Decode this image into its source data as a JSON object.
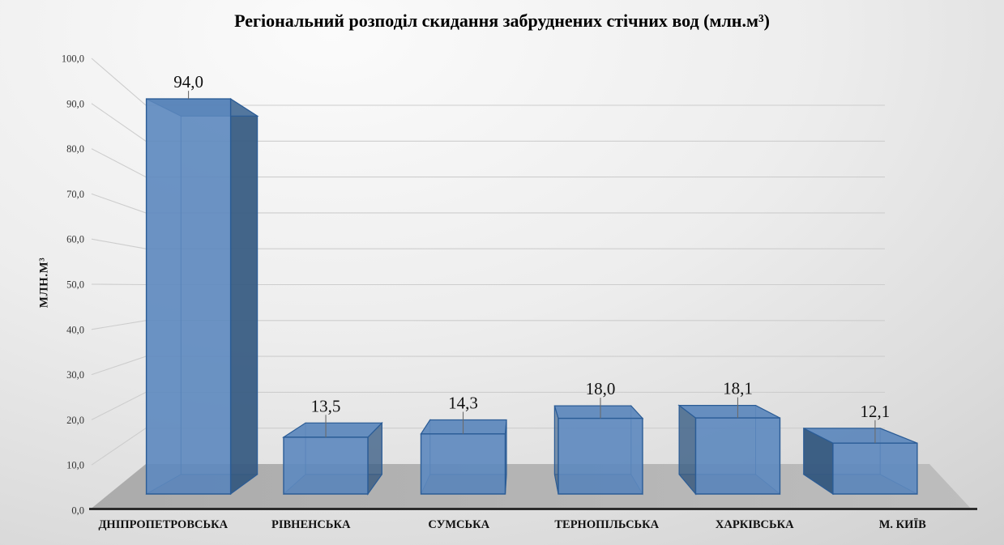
{
  "chart_data": {
    "type": "bar",
    "style_3d": true,
    "title": "Регіональний розподіл скидання забруднених стічних вод (млн.м³)",
    "ylabel": "МЛН.М³",
    "categories": [
      "ДНІПРОПЕТРОВСЬКА",
      "РІВНЕНСЬКА",
      "СУМСЬКА",
      "ТЕРНОПІЛЬСЬКА",
      "ХАРКІВСЬКА",
      "М. КИЇВ"
    ],
    "values": [
      94.0,
      13.5,
      14.3,
      18.0,
      18.1,
      12.1
    ],
    "value_labels": [
      "94,0",
      "13,5",
      "14,3",
      "18,0",
      "18,1",
      "12,1"
    ],
    "ylim": [
      0,
      100
    ],
    "ytick_step": 10,
    "ytick_labels": [
      "0,0",
      "10,0",
      "20,0",
      "30,0",
      "40,0",
      "50,0",
      "60,0",
      "70,0",
      "80,0",
      "90,0",
      "100,0"
    ],
    "grid": true,
    "legend": "none"
  },
  "colors": {
    "bar_front": "#5c88bd",
    "bar_top": "#5f89bc",
    "bar_top_underside": "#54799f",
    "bar_side_dark": "#35597f",
    "bar_side_light": "#8cb0da",
    "bar_back": "#82a2cd",
    "bar_bottom": "#4b5f78",
    "bar_edge": "#2b5c96",
    "floor_left": "#ababab",
    "floor_right": "#bdbdbd",
    "gridline": "#cdcdcd",
    "axis_line": "#212121",
    "label_text": "#111111",
    "tick_text": "#333333",
    "leader": "#6b6b6b"
  }
}
